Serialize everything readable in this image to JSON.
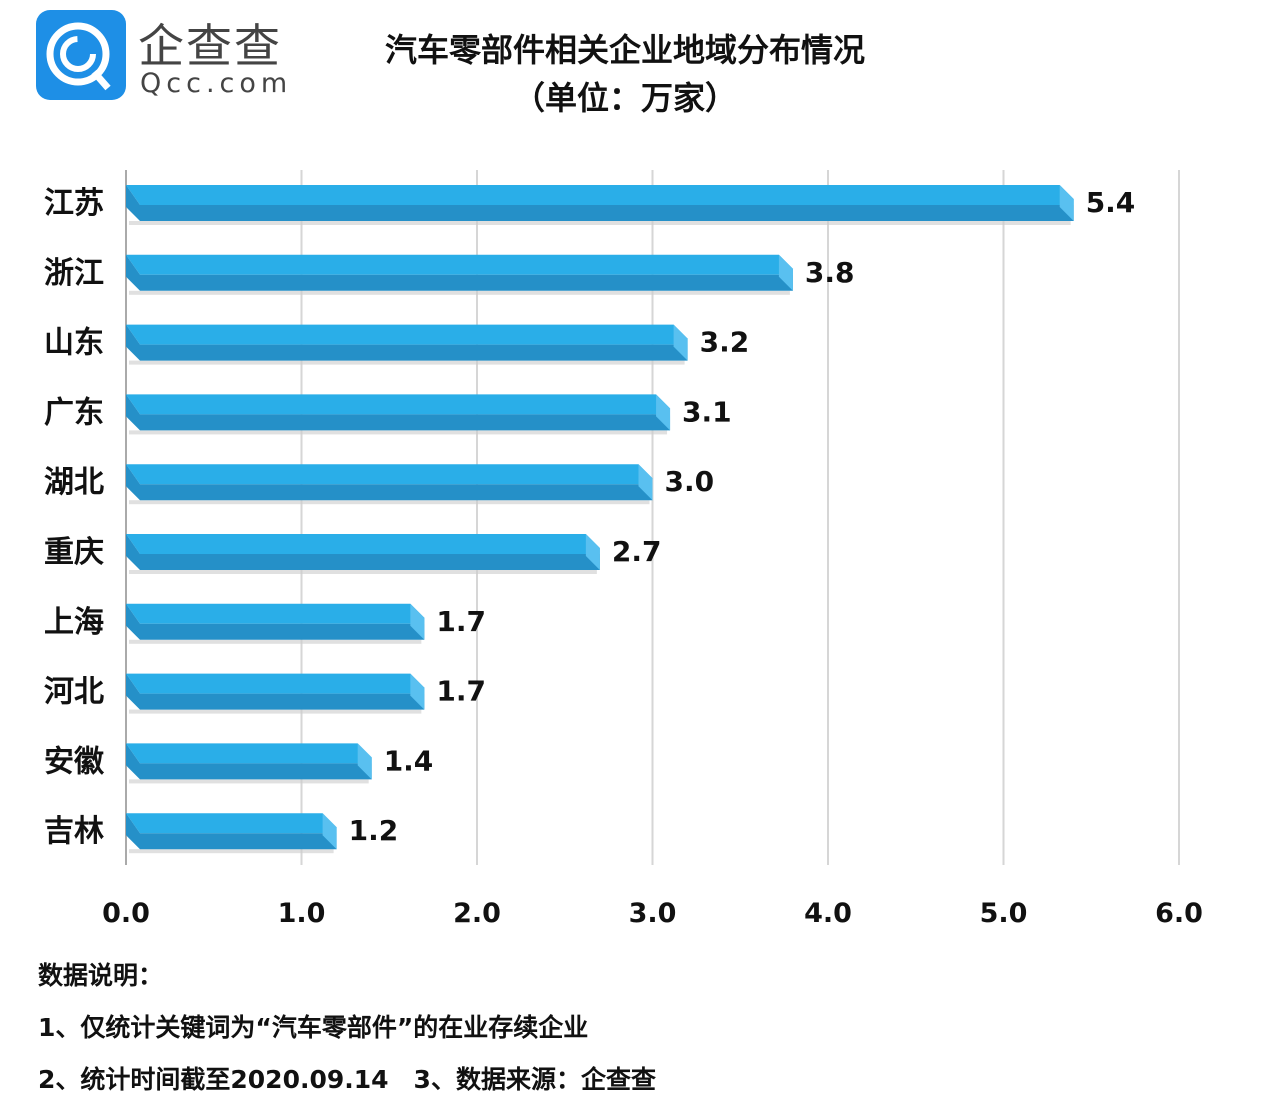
{
  "logo": {
    "brand": "企查查",
    "domain": "Qcc.com"
  },
  "title_line1": "汽车零部件相关企业地域分布情况",
  "title_line2": "（单位：万家）",
  "chart_data": {
    "type": "bar",
    "orientation": "horizontal",
    "title": "汽车零部件相关企业地域分布情况（单位：万家）",
    "categories": [
      "江苏",
      "浙江",
      "山东",
      "广东",
      "湖北",
      "重庆",
      "上海",
      "河北",
      "安徽",
      "吉林"
    ],
    "values": [
      5.4,
      3.8,
      3.2,
      3.1,
      3.0,
      2.7,
      1.7,
      1.7,
      1.4,
      1.2
    ],
    "value_labels": [
      "5.4",
      "3.8",
      "3.2",
      "3.1",
      "3.0",
      "2.7",
      "1.7",
      "1.7",
      "1.4",
      "1.2"
    ],
    "xlim": [
      0,
      6
    ],
    "xticks": [
      "0.0",
      "1.0",
      "2.0",
      "3.0",
      "4.0",
      "5.0",
      "6.0"
    ],
    "grid": true,
    "bar_color": "#2aaee8"
  },
  "notes": {
    "heading": "数据说明：",
    "line1": "1、仅统计关键词为“汽车零部件”的在业存续企业",
    "line2": "2、统计时间截至2020.09.14　3、数据来源：企查查"
  }
}
